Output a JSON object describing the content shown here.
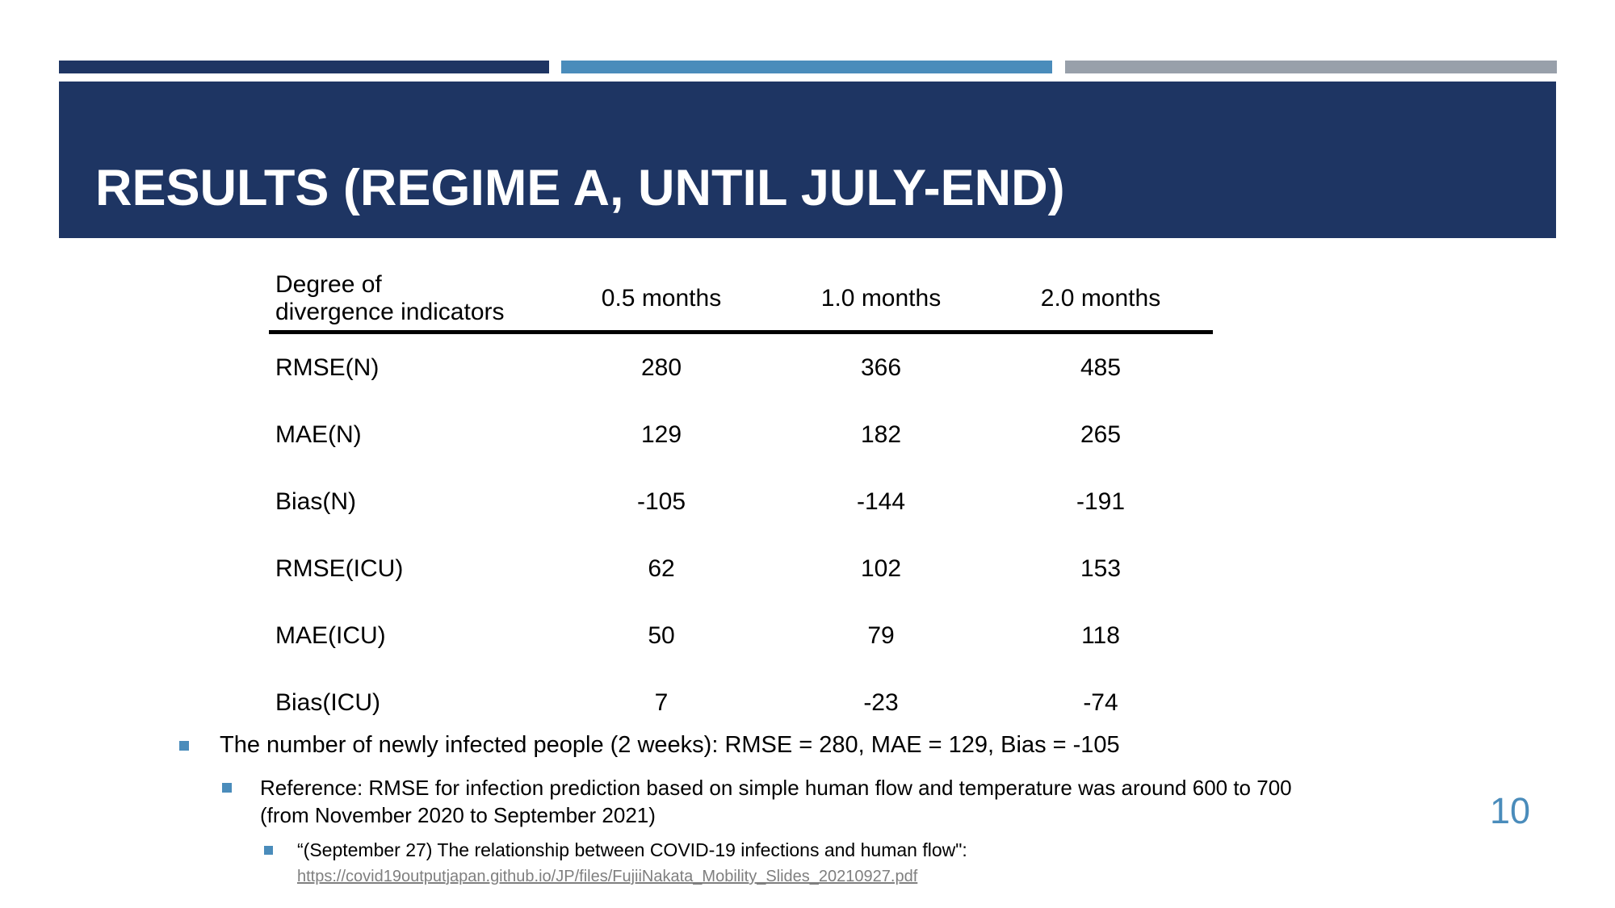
{
  "slide": {
    "title": "RESULTS (REGIME A, UNTIL JULY-END)",
    "page_number": "10"
  },
  "colors": {
    "navy": "#1e3563",
    "steel_blue": "#4a8cbb",
    "gray": "#98a0aa",
    "link_gray": "#7f7f7f"
  },
  "table": {
    "header_label_line1": "Degree of",
    "header_label_line2": "divergence indicators",
    "columns": [
      "0.5 months",
      "1.0 months",
      "2.0 months"
    ],
    "rows": [
      {
        "label": "RMSE(N)",
        "values": [
          "280",
          "366",
          "485"
        ]
      },
      {
        "label": "MAE(N)",
        "values": [
          "129",
          "182",
          "265"
        ]
      },
      {
        "label": "Bias(N)",
        "values": [
          "-105",
          "-144",
          "-191"
        ]
      },
      {
        "label": "RMSE(ICU)",
        "values": [
          "62",
          "102",
          "153"
        ]
      },
      {
        "label": "MAE(ICU)",
        "values": [
          "50",
          "79",
          "118"
        ]
      },
      {
        "label": "Bias(ICU)",
        "values": [
          "7",
          "-23",
          "-74"
        ]
      }
    ]
  },
  "bullets": [
    {
      "level": 1,
      "text": "The number of newly infected people (2 weeks): RMSE = 280, MAE = 129, Bias = -105"
    },
    {
      "level": 2,
      "text": "Reference: RMSE for infection prediction based on simple human flow and temperature was around 600 to 700",
      "text2": "(from November 2020 to September 2021)"
    },
    {
      "level": 3,
      "text": "“(September 27) The relationship between COVID-19 infections and human flow\":",
      "link": "https://covid19outputjapan.github.io/JP/files/FujiiNakata_Mobility_Slides_20210927.pdf"
    }
  ]
}
